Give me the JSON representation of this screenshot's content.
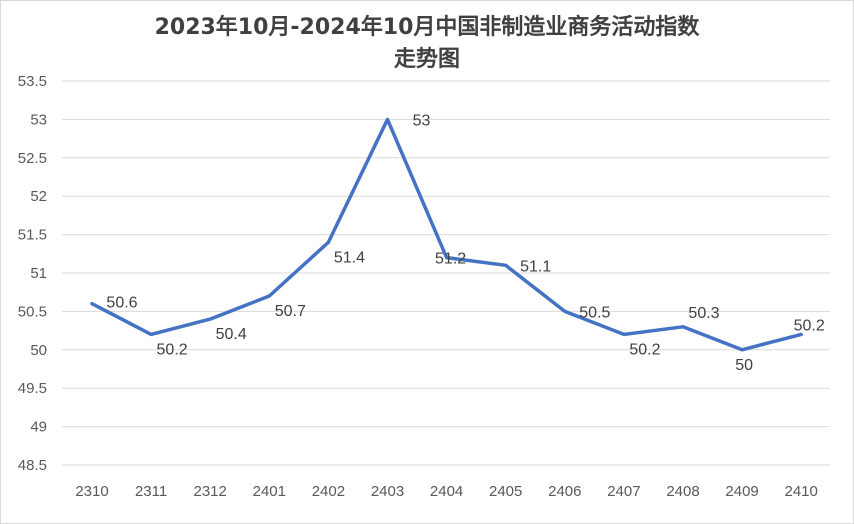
{
  "chart_data": {
    "type": "line",
    "title_line1": "2023年10月-2024年10月中国非制造业商务活动指数",
    "title_line2": "走势图",
    "categories": [
      "2310",
      "2311",
      "2312",
      "2401",
      "2402",
      "2403",
      "2404",
      "2405",
      "2406",
      "2407",
      "2408",
      "2409",
      "2410"
    ],
    "series": [
      {
        "values": [
          50.6,
          50.2,
          50.4,
          50.7,
          51.4,
          53,
          51.2,
          51.1,
          50.5,
          50.2,
          50.3,
          50,
          50.2
        ]
      }
    ],
    "ylim": [
      48.5,
      53.5
    ],
    "yticks": [
      "48.5",
      "49",
      "49.5",
      "50",
      "50.5",
      "51",
      "51.5",
      "52",
      "52.5",
      "53",
      "53.5"
    ],
    "data_labels": [
      "50.6",
      "50.2",
      "50.4",
      "50.7",
      "51.4",
      "53",
      "51.2",
      "51.1",
      "50.5",
      "50.2",
      "50.3",
      "50",
      "50.2"
    ],
    "grid": true,
    "colors": {
      "line": "#4472c4",
      "grid": "#d9d9d9"
    }
  }
}
